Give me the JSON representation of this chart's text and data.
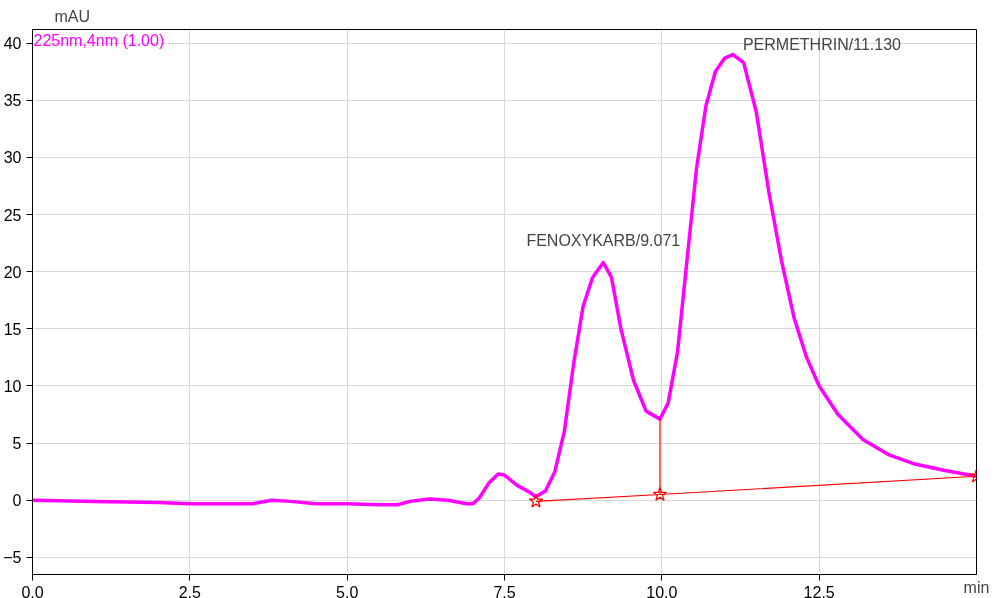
{
  "chart_data": {
    "type": "line",
    "xlabel": "min",
    "ylabel": "mAU",
    "xlim": [
      0,
      15
    ],
    "ylim": [
      -6.5,
      41.2
    ],
    "xticks": [
      {
        "value": 0,
        "label": "0.0"
      },
      {
        "value": 2.5,
        "label": "2.5"
      },
      {
        "value": 5,
        "label": "5.0"
      },
      {
        "value": 7.5,
        "label": "7.5"
      },
      {
        "value": 10,
        "label": "10.0"
      },
      {
        "value": 12.5,
        "label": "12.5"
      }
    ],
    "yticks": [
      -5,
      0,
      5,
      10,
      15,
      20,
      25,
      30,
      35,
      40
    ],
    "grid": true,
    "legend": false,
    "marker": "none",
    "line_style": "solid",
    "series": [
      {
        "name": "225nm,4nm (1.00)",
        "color": "#ff00ff",
        "x": [
          0,
          1,
          2,
          2.5,
          3,
          3.5,
          3.8,
          4.1,
          4.5,
          5,
          5.5,
          5.8,
          6.0,
          6.3,
          6.6,
          6.9,
          7.0,
          7.1,
          7.25,
          7.4,
          7.5,
          7.7,
          7.9,
          8.0,
          8.15,
          8.3,
          8.45,
          8.6,
          8.75,
          8.9,
          9.07,
          9.2,
          9.35,
          9.55,
          9.75,
          9.97,
          10.1,
          10.25,
          10.4,
          10.55,
          10.7,
          10.85,
          11.0,
          11.13,
          11.3,
          11.5,
          11.7,
          11.9,
          12.1,
          12.3,
          12.5,
          12.8,
          13.2,
          13.6,
          14.0,
          14.5,
          15.0
        ],
        "values": [
          0,
          -0.1,
          -0.2,
          -0.3,
          -0.3,
          -0.3,
          0,
          -0.1,
          -0.3,
          -0.3,
          -0.4,
          -0.4,
          -0.1,
          0.1,
          0.0,
          -0.3,
          -0.3,
          0.2,
          1.5,
          2.3,
          2.2,
          1.3,
          0.7,
          0.3,
          0.8,
          2.5,
          6,
          12,
          17,
          19.5,
          20.8,
          19.5,
          15,
          10.5,
          7.8,
          7.1,
          8.5,
          13,
          21,
          29,
          34.5,
          37.5,
          38.7,
          39.0,
          38.3,
          34,
          27,
          21,
          16,
          12.5,
          10,
          7.5,
          5.3,
          4,
          3.2,
          2.6,
          2.1
        ]
      },
      {
        "color": "#ff0000",
        "x": [
          8.0,
          9.97,
          15.0
        ],
        "values": [
          -0.1,
          0.5,
          2.1
        ],
        "marker": "star"
      },
      {
        "color": "#ff0000",
        "x": [
          9.97,
          9.97
        ],
        "values": [
          0.5,
          7.1
        ]
      }
    ],
    "annotations": [
      {
        "text": "FENOXYKARB/9.071",
        "x": 9.07,
        "y": 20.8
      },
      {
        "text": "PERMETHRIN/11.130",
        "x": 11.13,
        "y": 39.0
      }
    ]
  }
}
